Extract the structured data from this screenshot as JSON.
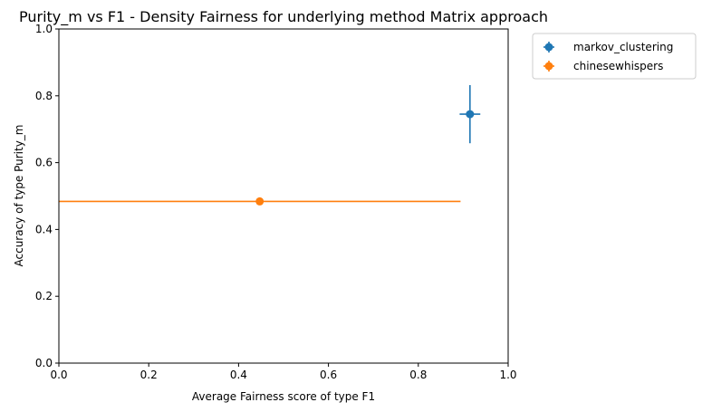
{
  "chart_data": {
    "type": "scatter",
    "title": "Purity_m vs F1 - Density Fairness for underlying method Matrix approach",
    "xlabel": "Average Fairness score of type F1",
    "ylabel": "Accuracy of type Purity_m",
    "xlim": [
      0.0,
      1.0
    ],
    "ylim": [
      0.0,
      1.0
    ],
    "xticks": [
      "0.0",
      "0.2",
      "0.4",
      "0.6",
      "0.8",
      "1.0"
    ],
    "yticks": [
      "0.0",
      "0.2",
      "0.4",
      "0.6",
      "0.8",
      "1.0"
    ],
    "grid": false,
    "legend_position": "outside-top-right",
    "series": [
      {
        "name": "markov_clustering",
        "color": "#1f77b4",
        "points": [
          {
            "x": 0.915,
            "y": 0.745,
            "xerr": 0.023,
            "yerr": 0.087
          }
        ]
      },
      {
        "name": "chinesewhispers",
        "color": "#ff7f0e",
        "points": [
          {
            "x": 0.447,
            "y": 0.484,
            "xerr": 0.447,
            "yerr": 0.0
          }
        ]
      }
    ]
  }
}
